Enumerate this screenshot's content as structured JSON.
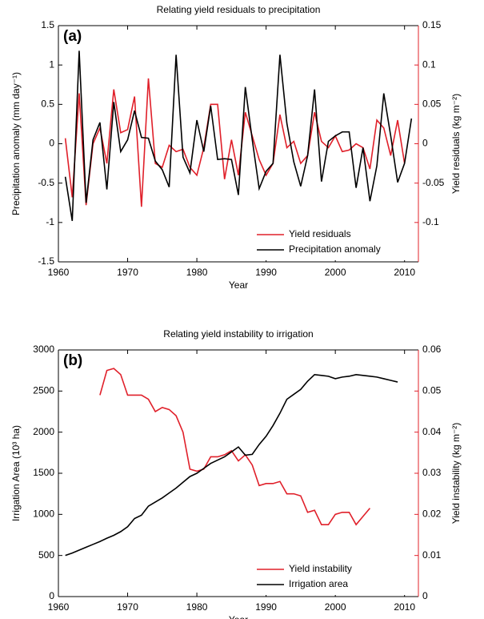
{
  "chart_data": [
    {
      "type": "line",
      "label": "(a)",
      "title": "Relating yield residuals to precipitation",
      "xlabel": "Year",
      "ylabel": "Precipitation anomaly (mm day⁻¹)",
      "y2label": "Yield residuals (kg m⁻²)",
      "x": [
        1961,
        1962,
        1963,
        1964,
        1965,
        1966,
        1967,
        1968,
        1969,
        1970,
        1971,
        1972,
        1973,
        1974,
        1975,
        1976,
        1977,
        1978,
        1979,
        1980,
        1981,
        1982,
        1983,
        1984,
        1985,
        1986,
        1987,
        1988,
        1989,
        1990,
        1991,
        1992,
        1993,
        1994,
        1995,
        1996,
        1997,
        1998,
        1999,
        2000,
        2001,
        2002,
        2003,
        2004,
        2005,
        2006,
        2007,
        2008,
        2009,
        2010,
        2011
      ],
      "xlim": [
        1960,
        2012
      ],
      "xticks": [
        1960,
        1970,
        1980,
        1990,
        2000,
        2010
      ],
      "ylim": [
        -1.5,
        1.5
      ],
      "yticks": [
        -1.5,
        -1,
        -0.5,
        0,
        0.5,
        1,
        1.5
      ],
      "y2lim": [
        -0.15,
        0.15
      ],
      "y2ticks": [
        -0.1,
        -0.05,
        0,
        0.05,
        0.1,
        0.15
      ],
      "y2color": "#e0202a",
      "legend": "lower right",
      "series": [
        {
          "name": "Yield residuals",
          "color": "#e0202a",
          "axis": "y2",
          "values": [
            0.007,
            -0.068,
            0.064,
            -0.078,
            0.0,
            0.02,
            -0.025,
            0.069,
            0.014,
            0.018,
            0.06,
            -0.08,
            0.083,
            -0.025,
            -0.03,
            -0.002,
            -0.01,
            -0.007,
            -0.03,
            -0.04,
            -0.005,
            0.05,
            0.05,
            -0.045,
            0.005,
            -0.04,
            0.04,
            0.01,
            -0.02,
            -0.04,
            -0.025,
            0.037,
            -0.005,
            0.003,
            -0.025,
            -0.015,
            0.04,
            0.003,
            -0.005,
            0.01,
            -0.01,
            -0.008,
            0.0,
            -0.005,
            -0.032,
            0.03,
            0.02,
            -0.015,
            0.03,
            -0.025,
            null
          ]
        },
        {
          "name": "Precipitation anomaly",
          "color": "#000000",
          "axis": "y",
          "values": [
            -0.42,
            -0.98,
            1.18,
            -0.75,
            0.05,
            0.27,
            -0.58,
            0.53,
            -0.1,
            0.05,
            0.42,
            0.08,
            0.07,
            -0.22,
            -0.33,
            -0.55,
            1.13,
            -0.17,
            -0.37,
            0.3,
            -0.1,
            0.48,
            -0.2,
            -0.19,
            -0.2,
            -0.65,
            0.72,
            0.05,
            -0.57,
            -0.35,
            -0.25,
            1.13,
            0.26,
            -0.23,
            -0.54,
            -0.15,
            0.69,
            -0.48,
            0.03,
            0.1,
            0.15,
            0.15,
            -0.56,
            -0.05,
            -0.73,
            -0.28,
            0.64,
            0.1,
            -0.49,
            -0.25,
            0.32
          ]
        }
      ]
    },
    {
      "type": "line",
      "label": "(b)",
      "title": "Relating yield instability to irrigation",
      "xlabel": "Year",
      "ylabel": "Irrigation Area (10³ ha)",
      "y2label": "Yield instability (kg m⁻²)",
      "x": [
        1961,
        1962,
        1963,
        1964,
        1965,
        1966,
        1967,
        1968,
        1969,
        1970,
        1971,
        1972,
        1973,
        1974,
        1975,
        1976,
        1977,
        1978,
        1979,
        1980,
        1981,
        1982,
        1983,
        1984,
        1985,
        1986,
        1987,
        1988,
        1989,
        1990,
        1991,
        1992,
        1993,
        1994,
        1995,
        1996,
        1997,
        1998,
        1999,
        2000,
        2001,
        2002,
        2003,
        2004,
        2005,
        2006,
        2007,
        2008,
        2009
      ],
      "xlim": [
        1960,
        2012
      ],
      "xticks": [
        1960,
        1970,
        1980,
        1990,
        2000,
        2010
      ],
      "ylim": [
        0,
        3000
      ],
      "yticks": [
        0,
        500,
        1000,
        1500,
        2000,
        2500,
        3000
      ],
      "y2lim": [
        0,
        0.06
      ],
      "y2ticks": [
        0,
        0.01,
        0.02,
        0.03,
        0.04,
        0.05,
        0.06
      ],
      "y2color": "#e0202a",
      "legend": "lower right",
      "series": [
        {
          "name": "Yield instability",
          "color": "#e0202a",
          "axis": "y2",
          "values": [
            null,
            null,
            null,
            null,
            null,
            0.049,
            0.055,
            0.0555,
            0.054,
            0.049,
            0.049,
            0.049,
            0.048,
            0.045,
            0.046,
            0.0455,
            0.044,
            0.04,
            0.031,
            0.0305,
            0.031,
            0.034,
            0.034,
            0.0345,
            0.0355,
            0.033,
            0.0345,
            0.032,
            0.027,
            0.0275,
            0.0275,
            0.028,
            0.025,
            0.025,
            0.0245,
            0.0205,
            0.021,
            0.0175,
            0.0175,
            0.02,
            0.0205,
            0.0205,
            0.0175,
            0.0195,
            0.0215,
            null,
            null,
            null,
            null
          ]
        },
        {
          "name": "Irrigation area",
          "color": "#000000",
          "axis": "y",
          "values": [
            500,
            530,
            565,
            600,
            635,
            670,
            710,
            745,
            790,
            850,
            950,
            990,
            1100,
            1150,
            1200,
            1260,
            1320,
            1390,
            1460,
            1500,
            1560,
            1620,
            1660,
            1700,
            1760,
            1820,
            1720,
            1730,
            1850,
            1950,
            2080,
            2230,
            2400,
            2460,
            2520,
            2620,
            2700,
            2690,
            2680,
            2650,
            2670,
            2680,
            2700,
            2690,
            2680,
            2670,
            2650,
            2630,
            2610
          ]
        }
      ]
    }
  ]
}
